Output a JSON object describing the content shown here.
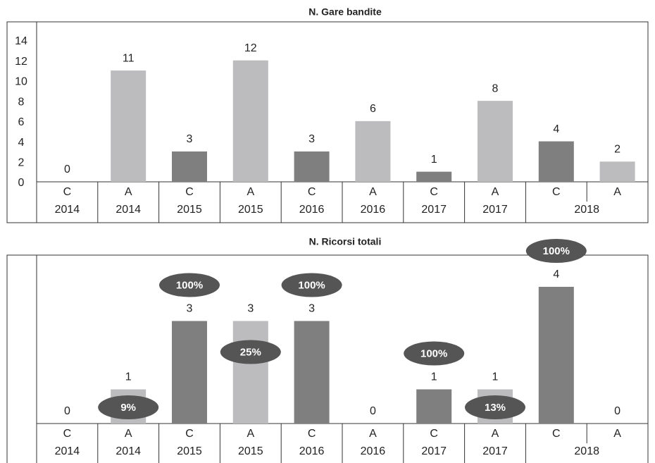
{
  "chart_data": [
    {
      "type": "bar",
      "title": "N. Gare bandite",
      "categories": [
        "C",
        "A",
        "C",
        "A",
        "C",
        "A",
        "C",
        "A",
        "C",
        "A"
      ],
      "years": [
        "2014",
        "2014",
        "2015",
        "2015",
        "2016",
        "2016",
        "2017",
        "2017",
        "2018",
        null
      ],
      "values": [
        0,
        11,
        3,
        12,
        3,
        6,
        1,
        8,
        4,
        2
      ],
      "colors": [
        "#7f7f80",
        "#bcbcbe",
        "#7f7f80",
        "#bcbcbe",
        "#7f7f80",
        "#bcbcbe",
        "#7f7f80",
        "#bcbcbe",
        "#7f7f80",
        "#bcbcbe"
      ],
      "ylim": [
        0,
        14
      ],
      "yticks": [
        0,
        2,
        4,
        6,
        8,
        10,
        12,
        14
      ]
    },
    {
      "type": "bar",
      "title": "N. Ricorsi totali",
      "categories": [
        "C",
        "A",
        "C",
        "A",
        "C",
        "A",
        "C",
        "A",
        "C",
        "A"
      ],
      "years": [
        "2014",
        "2014",
        "2015",
        "2015",
        "2016",
        "2016",
        "2017",
        "2017",
        "2018",
        null
      ],
      "values": [
        0,
        1,
        3,
        3,
        3,
        0,
        1,
        1,
        4,
        0
      ],
      "colors": [
        "#7f7f80",
        "#bcbcbe",
        "#7f7f80",
        "#bcbcbe",
        "#7f7f80",
        "#bcbcbe",
        "#7f7f80",
        "#bcbcbe",
        "#7f7f80",
        "#bcbcbe"
      ],
      "percentages": [
        null,
        9,
        100,
        25,
        100,
        null,
        100,
        13,
        100,
        null
      ],
      "percentage_labels": [
        null,
        "9%",
        "100%",
        "25%",
        "100%",
        null,
        "100%",
        "13%",
        "100%",
        null
      ]
    }
  ]
}
